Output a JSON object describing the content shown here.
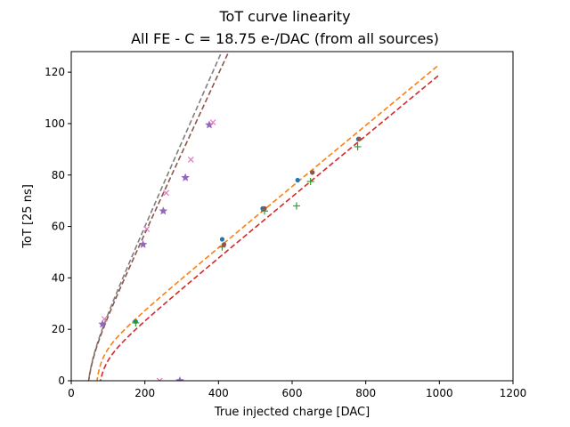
{
  "chart_data": {
    "type": "scatter",
    "title": "ToT curve linearity",
    "subtitle": "All FE - C = 18.75 e-/DAC (from all sources)",
    "xlabel": "True injected charge [DAC]",
    "ylabel": "ToT [25 ns]",
    "xlim": [
      0,
      1200
    ],
    "ylim": [
      0,
      128
    ],
    "xticks": [
      "0",
      "200",
      "400",
      "600",
      "800",
      "1000",
      "1200"
    ],
    "yticks": [
      "0",
      "20",
      "40",
      "60",
      "80",
      "100",
      "120"
    ],
    "grid": false,
    "colors": {
      "blue": "#1f77b4",
      "orange": "#ff7f0e",
      "green": "#2ca02c",
      "red": "#d62728",
      "purple": "#9467bd",
      "brown": "#8c564b",
      "pink": "#e377c2",
      "gray": "#7f7f7f"
    },
    "points": [
      {
        "marker": "dot",
        "color": "#1f77b4",
        "x": [
          175,
          410,
          520,
          615,
          655,
          780
        ],
        "y": [
          23,
          55,
          67,
          78,
          81,
          94
        ]
      },
      {
        "marker": "plus",
        "color": "#2ca02c",
        "x": [
          175,
          410,
          525,
          612,
          650,
          778
        ],
        "y": [
          22.5,
          52,
          66,
          68,
          77.5,
          91
        ]
      },
      {
        "marker": "dot",
        "color": "#8c564b",
        "x": [
          415,
          525,
          655,
          782
        ],
        "y": [
          53,
          67,
          81,
          94
        ]
      },
      {
        "marker": "star",
        "color": "#9467bd",
        "x": [
          85,
          195,
          250,
          310,
          375,
          295
        ],
        "y": [
          22,
          53,
          66,
          79,
          99.5,
          0
        ]
      },
      {
        "marker": "x",
        "color": "#e377c2",
        "x": [
          90,
          205,
          258,
          325,
          385,
          240
        ],
        "y": [
          24,
          59,
          73,
          86,
          100.5,
          0
        ]
      }
    ],
    "fits": [
      {
        "color": "#ff7f0e",
        "a": 0.1182,
        "b": 5.0,
        "c": 200.0,
        "t": 55.0,
        "xmax": 1000
      },
      {
        "color": "#d62728",
        "a": 0.1182,
        "b": 1.0,
        "c": 200.0,
        "t": 60.0,
        "xmax": 1000
      },
      {
        "color": "#7f7f7f",
        "a": 0.323,
        "b": -3.5,
        "c": 200.0,
        "t": 30.0,
        "xmax": 480
      },
      {
        "color": "#8c564b",
        "a": 0.3073,
        "b": -3.0,
        "c": 200.0,
        "t": 30.0,
        "xmax": 480
      }
    ]
  }
}
